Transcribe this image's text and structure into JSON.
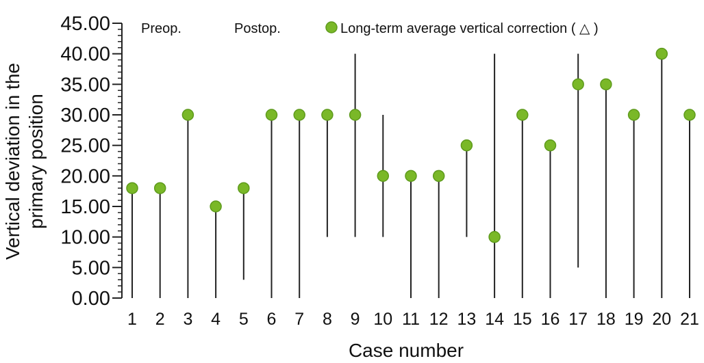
{
  "chart_data": {
    "type": "scatter",
    "xlabel": "Case number",
    "ylabel_lines": [
      "Vertical deviation in the",
      "primary position"
    ],
    "ylim": [
      0,
      45
    ],
    "ytick_values": [
      0,
      5,
      10,
      15,
      20,
      25,
      30,
      35,
      40,
      45
    ],
    "ytick_labels": [
      "0.00",
      "5.00",
      "10.00",
      "15.00",
      "20.00",
      "25.00",
      "30.00",
      "35.00",
      "40.00",
      "45.00"
    ],
    "categories": [
      "1",
      "2",
      "3",
      "4",
      "5",
      "6",
      "7",
      "8",
      "9",
      "10",
      "11",
      "12",
      "13",
      "14",
      "15",
      "16",
      "17",
      "18",
      "19",
      "20",
      "21"
    ],
    "legend": {
      "preop": "Preop.",
      "postop": "Postop.",
      "point_label": "Long-term average vertical correction ( △ )"
    },
    "series": [
      {
        "name": "Long-term average vertical correction ( △ )",
        "values": [
          18,
          18,
          30,
          15,
          18,
          30,
          30,
          30,
          30,
          20,
          20,
          20,
          25,
          10,
          30,
          25,
          35,
          35,
          30,
          40,
          30
        ]
      }
    ],
    "ranges": [
      [
        0,
        18
      ],
      [
        0,
        18
      ],
      [
        0,
        30
      ],
      [
        0,
        15
      ],
      [
        3,
        18
      ],
      [
        0,
        30
      ],
      [
        0,
        30
      ],
      [
        10,
        30
      ],
      [
        10,
        40
      ],
      [
        10,
        30
      ],
      [
        0,
        20
      ],
      [
        0,
        20
      ],
      [
        10,
        25
      ],
      [
        0,
        40
      ],
      [
        0,
        30
      ],
      [
        0,
        25
      ],
      [
        5,
        40
      ],
      [
        0,
        35
      ],
      [
        0,
        30
      ],
      [
        0,
        40
      ],
      [
        0,
        30
      ]
    ],
    "grid": false,
    "colors": {
      "point_fill": "#7ab828",
      "point_stroke": "#5e9a1c",
      "line": "#222222",
      "axis": "#222222"
    }
  }
}
